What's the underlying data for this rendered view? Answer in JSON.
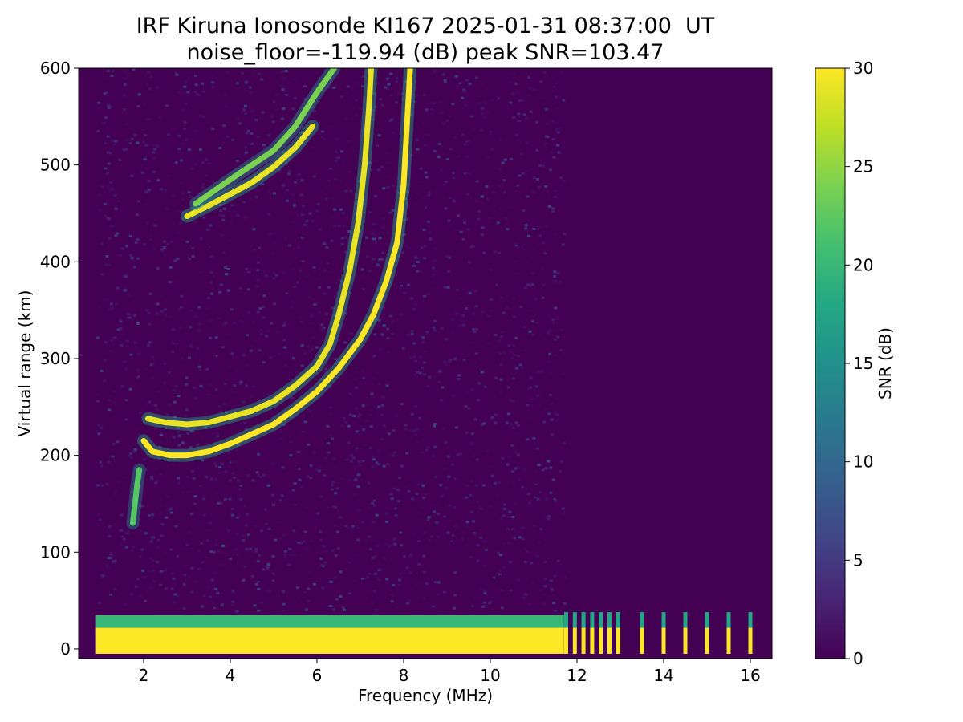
{
  "title_line1": "IRF Kiruna Ionosonde KI167 2025-01-31 08:37:00  UT",
  "title_line2": "noise_floor=-119.94 (dB) peak SNR=103.47",
  "chart_data": {
    "type": "heatmap",
    "title": "IRF Kiruna Ionosonde KI167 2025-01-31 08:37:00  UT",
    "subtitle": "noise_floor=-119.94 (dB) peak SNR=103.47",
    "xlabel": "Frequency (MHz)",
    "ylabel": "Virtual range (km)",
    "colorbar_label": "SNR (dB)",
    "colormap": "viridis",
    "xlim": [
      0.5,
      16.5
    ],
    "ylim": [
      -10,
      600
    ],
    "clim": [
      0,
      30
    ],
    "x_ticks": [
      2,
      4,
      6,
      8,
      10,
      12,
      14,
      16
    ],
    "y_ticks": [
      0,
      100,
      200,
      300,
      400,
      500,
      600
    ],
    "colorbar_ticks": [
      0,
      5,
      10,
      15,
      20,
      25,
      30
    ],
    "sounding_start_mhz": 0.9,
    "ground_clutter": [
      {
        "range_km": [
          -5,
          22
        ],
        "freq_mhz": [
          0.9,
          11.7
        ],
        "snr_db": 30
      },
      {
        "range_km": [
          22,
          35
        ],
        "freq_mhz": [
          0.9,
          11.7
        ],
        "snr_db": 20
      }
    ],
    "discrete_channels_mhz": [
      11.75,
      11.95,
      12.15,
      12.35,
      12.55,
      12.75,
      12.95,
      13.5,
      14.0,
      14.5,
      15.0,
      15.5,
      16.0
    ],
    "traces": [
      {
        "name": "",
        "snr_db": 30,
        "points": [
          [
            2.0,
            215
          ],
          [
            2.2,
            204
          ],
          [
            2.6,
            200
          ],
          [
            3.0,
            200
          ],
          [
            3.5,
            204
          ],
          [
            4.0,
            212
          ],
          [
            4.5,
            222
          ],
          [
            5.0,
            232
          ],
          [
            5.5,
            248
          ],
          [
            6.0,
            266
          ],
          [
            6.5,
            290
          ],
          [
            7.0,
            320
          ],
          [
            7.3,
            345
          ],
          [
            7.6,
            380
          ],
          [
            7.85,
            420
          ],
          [
            8.0,
            480
          ],
          [
            8.1,
            560
          ],
          [
            8.15,
            600
          ]
        ]
      },
      {
        "name": "",
        "snr_db": 29,
        "points": [
          [
            2.1,
            238
          ],
          [
            2.5,
            234
          ],
          [
            3.0,
            232
          ],
          [
            3.5,
            234
          ],
          [
            4.0,
            240
          ],
          [
            4.5,
            246
          ],
          [
            5.0,
            256
          ],
          [
            5.5,
            272
          ],
          [
            6.0,
            292
          ],
          [
            6.3,
            315
          ],
          [
            6.5,
            345
          ],
          [
            6.75,
            390
          ],
          [
            6.95,
            440
          ],
          [
            7.1,
            500
          ],
          [
            7.2,
            560
          ],
          [
            7.25,
            600
          ]
        ]
      },
      {
        "name": "",
        "snr_db": 29,
        "points": [
          [
            3.0,
            447
          ],
          [
            3.5,
            458
          ],
          [
            4.0,
            470
          ],
          [
            4.5,
            482
          ],
          [
            5.0,
            498
          ],
          [
            5.5,
            518
          ],
          [
            5.9,
            540
          ]
        ]
      },
      {
        "name": "",
        "snr_db": 24,
        "points": [
          [
            3.2,
            460
          ],
          [
            4.0,
            485
          ],
          [
            4.5,
            500
          ],
          [
            5.0,
            515
          ],
          [
            5.5,
            540
          ],
          [
            6.0,
            575
          ],
          [
            6.4,
            600
          ]
        ]
      },
      {
        "name": "",
        "snr_db": 22,
        "points": [
          [
            1.75,
            130
          ],
          [
            1.8,
            150
          ],
          [
            1.85,
            170
          ],
          [
            1.9,
            185
          ]
        ]
      }
    ]
  },
  "colors": {
    "viridis_low": "#440154",
    "viridis_high": "#fde725"
  }
}
